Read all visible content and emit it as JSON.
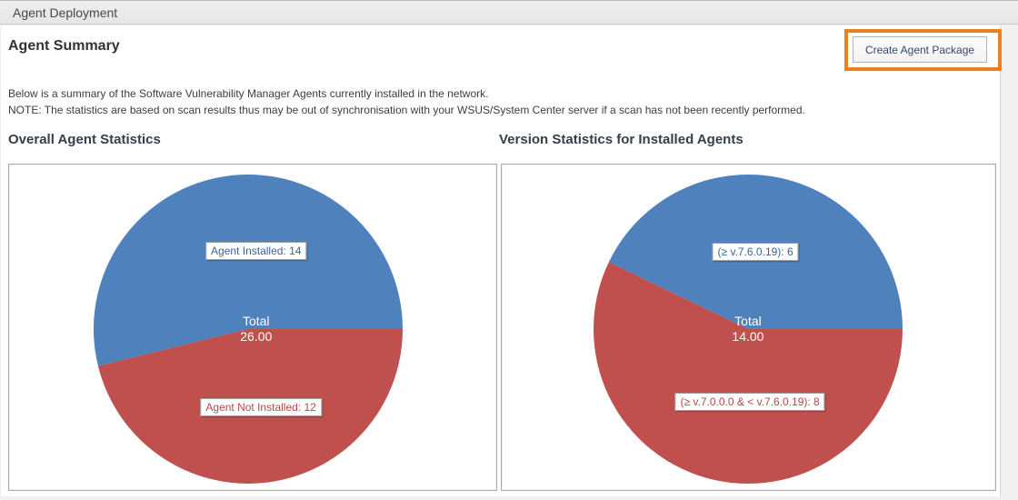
{
  "header": {
    "title": "Agent Deployment"
  },
  "page": {
    "title": "Agent Summary",
    "create_button_label": "Create Agent Package",
    "description": "Below is a summary of the Software Vulnerability Manager Agents currently installed in the network.",
    "note": "NOTE: The statistics are based on scan results thus may be out of synchronisation with your WSUS/System Center server if a scan has not been recently performed."
  },
  "colors": {
    "pie_blue": "#4f81bd",
    "pie_red": "#c0504d",
    "highlight_orange": "#e8821e",
    "label_text_blue": "#3e639a",
    "label_text_red": "#b04a47"
  },
  "chart_data": [
    {
      "type": "pie",
      "title": "Overall Agent Statistics",
      "total_label": "Total",
      "total_value": "26.00",
      "start_angle_deg": 0,
      "direction": "counterclockwise",
      "legend_position": "on-slice",
      "slices": [
        {
          "label": "Agent Installed: 14",
          "value": 14,
          "color": "#4f81bd",
          "text_color": "#3e639a"
        },
        {
          "label": "Agent Not Installed: 12",
          "value": 12,
          "color": "#c0504d",
          "text_color": "#b04a47"
        }
      ]
    },
    {
      "type": "pie",
      "title": "Version Statistics for Installed Agents",
      "total_label": "Total",
      "total_value": "14.00",
      "start_angle_deg": 0,
      "direction": "counterclockwise",
      "legend_position": "on-slice",
      "slices": [
        {
          "label": "(≥ v.7.6.0.19): 6",
          "value": 6,
          "color": "#4f81bd",
          "text_color": "#3e639a"
        },
        {
          "label": "(≥ v.7.0.0.0 & < v.7.6.0.19): 8",
          "value": 8,
          "color": "#c0504d",
          "text_color": "#b04a47"
        }
      ]
    }
  ]
}
